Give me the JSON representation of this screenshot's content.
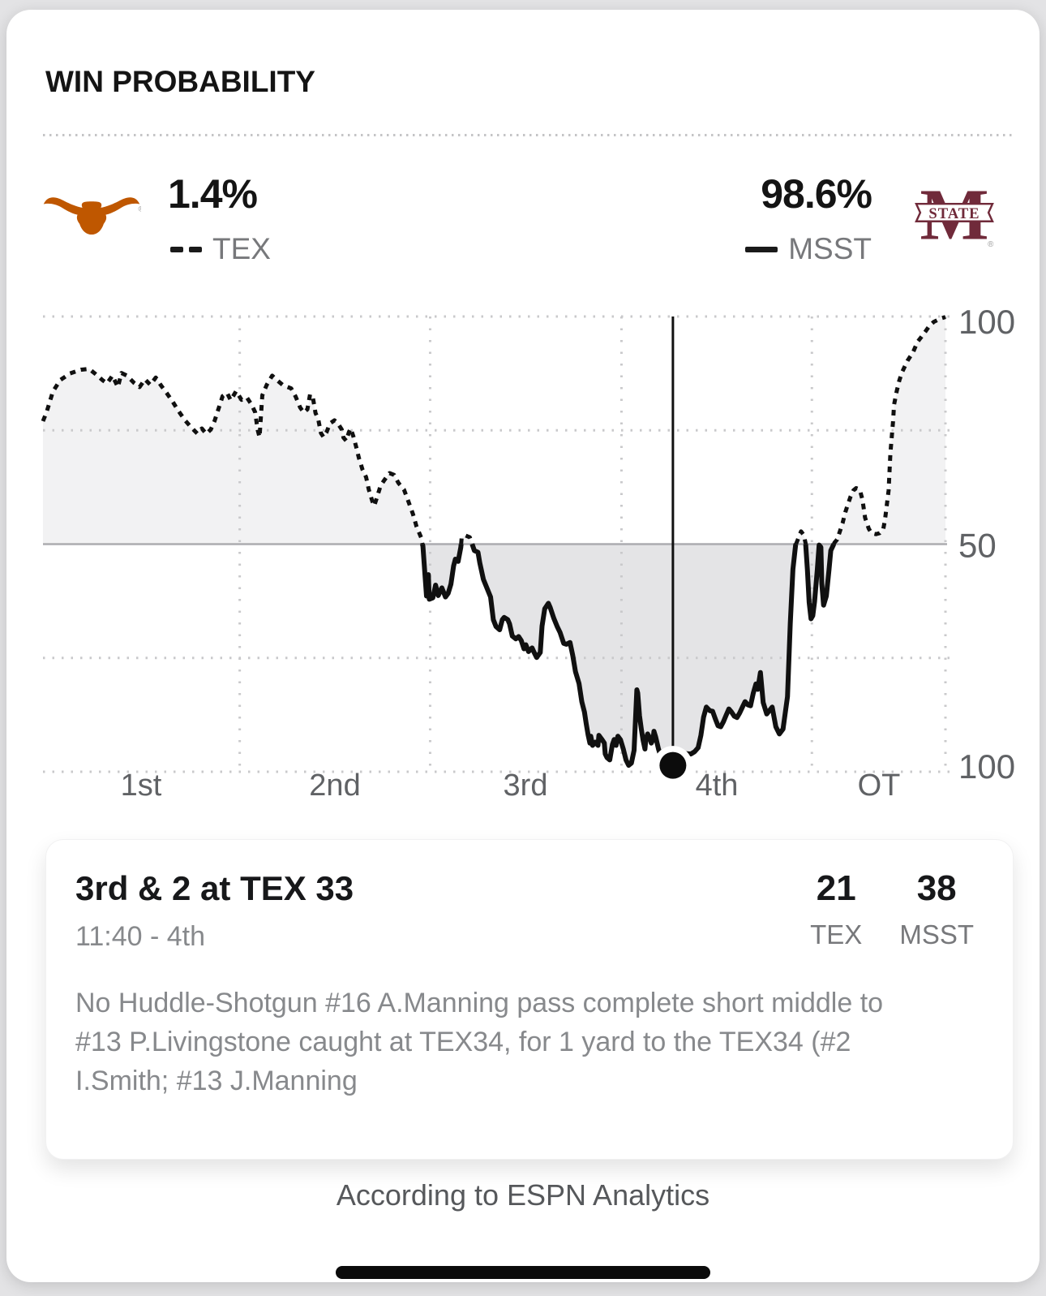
{
  "header": {
    "title": "WIN PROBABILITY"
  },
  "legend": {
    "away": {
      "pct": "1.4%",
      "abbr": "TEX",
      "line_style": "dashed",
      "logo_icon": "texas-longhorns-logo",
      "logo_color": "#BF5700"
    },
    "home": {
      "pct": "98.6%",
      "abbr": "MSST",
      "line_style": "solid",
      "logo_icon": "mississippi-state-logo",
      "logo_color": "#702A3A",
      "logo_banner_text": "STATE"
    }
  },
  "chart_data": {
    "type": "line",
    "x_labels": [
      "1st",
      "2nd",
      "3rd",
      "4th",
      "OT"
    ],
    "y_axis": {
      "top_label": "100",
      "mid_label": "50",
      "bottom_label": "100"
    },
    "quarter_boundaries_frac": [
      0.218,
      0.429,
      0.641,
      0.852,
      1.0
    ],
    "line_color": "#101010",
    "fill_above_50": "#f2f2f3",
    "fill_below_50": "#e4e4e6",
    "grid_color": "#c9c9cb",
    "mid_line_color": "#acacb0",
    "axis_label_color": "#606265",
    "current_play_marker": {
      "x_frac": 0.698,
      "tex_pct": 1.4
    },
    "series": [
      {
        "name": "TEX win probability (dashed above 50 = TEX favored, solid below 50 = MSST favored)",
        "x_unit": "fraction of game timeline",
        "points": [
          [
            0,
            77
          ],
          [
            0.004,
            79
          ],
          [
            0.011,
            83.5
          ],
          [
            0.019,
            86
          ],
          [
            0.03,
            87.5
          ],
          [
            0.042,
            88.3
          ],
          [
            0.051,
            88.5
          ],
          [
            0.058,
            87.4
          ],
          [
            0.066,
            86
          ],
          [
            0.071,
            85.3
          ],
          [
            0.077,
            87
          ],
          [
            0.083,
            84.5
          ],
          [
            0.087,
            87.6
          ],
          [
            0.093,
            87
          ],
          [
            0.101,
            85.4
          ],
          [
            0.107,
            84.5
          ],
          [
            0.113,
            86.2
          ],
          [
            0.119,
            85
          ],
          [
            0.125,
            86.6
          ],
          [
            0.131,
            84.8
          ],
          [
            0.137,
            83.2
          ],
          [
            0.144,
            81.2
          ],
          [
            0.15,
            79.3
          ],
          [
            0.157,
            77.3
          ],
          [
            0.164,
            75.7
          ],
          [
            0.171,
            74.3
          ],
          [
            0.176,
            75.4
          ],
          [
            0.181,
            74.2
          ],
          [
            0.186,
            75.2
          ],
          [
            0.19,
            77
          ],
          [
            0.195,
            80
          ],
          [
            0.199,
            82.5
          ],
          [
            0.204,
            83.2
          ],
          [
            0.208,
            81.6
          ],
          [
            0.214,
            83.6
          ],
          [
            0.22,
            81.7
          ],
          [
            0.226,
            82.2
          ],
          [
            0.231,
            80.7
          ],
          [
            0.235,
            79
          ],
          [
            0.238,
            75
          ],
          [
            0.24,
            73.5
          ],
          [
            0.243,
            82.7
          ],
          [
            0.248,
            85
          ],
          [
            0.254,
            87
          ],
          [
            0.26,
            85.9
          ],
          [
            0.266,
            84.9
          ],
          [
            0.275,
            84.2
          ],
          [
            0.28,
            82.4
          ],
          [
            0.285,
            80
          ],
          [
            0.289,
            78.9
          ],
          [
            0.293,
            79.6
          ],
          [
            0.296,
            82.9
          ],
          [
            0.299,
            82.3
          ],
          [
            0.302,
            78.8
          ],
          [
            0.305,
            77.4
          ],
          [
            0.308,
            74.4
          ],
          [
            0.311,
            73.5
          ],
          [
            0.314,
            74.5
          ],
          [
            0.318,
            76.5
          ],
          [
            0.323,
            77.2
          ],
          [
            0.327,
            76.4
          ],
          [
            0.331,
            75.2
          ],
          [
            0.333,
            73.4
          ],
          [
            0.336,
            72.7
          ],
          [
            0.339,
            74.6
          ],
          [
            0.341,
            75.4
          ],
          [
            0.344,
            73.6
          ],
          [
            0.347,
            71.4
          ],
          [
            0.35,
            69
          ],
          [
            0.354,
            66.4
          ],
          [
            0.358,
            64.7
          ],
          [
            0.361,
            62
          ],
          [
            0.365,
            59.4
          ],
          [
            0.367,
            58.4
          ],
          [
            0.37,
            60.2
          ],
          [
            0.374,
            62.8
          ],
          [
            0.378,
            64
          ],
          [
            0.384,
            65.6
          ],
          [
            0.389,
            65.2
          ],
          [
            0.394,
            63.4
          ],
          [
            0.4,
            62
          ],
          [
            0.405,
            59.3
          ],
          [
            0.41,
            56.6
          ],
          [
            0.414,
            53.8
          ],
          [
            0.419,
            51.5
          ],
          [
            0.421,
            49.5
          ],
          [
            0.423,
            44
          ],
          [
            0.425,
            38.6
          ],
          [
            0.427,
            43.3
          ],
          [
            0.428,
            37.9
          ],
          [
            0.432,
            38.2
          ],
          [
            0.435,
            41
          ],
          [
            0.438,
            38.7
          ],
          [
            0.442,
            40.4
          ],
          [
            0.446,
            38.4
          ],
          [
            0.449,
            39.2
          ],
          [
            0.452,
            41.2
          ],
          [
            0.455,
            45.2
          ],
          [
            0.457,
            46.7
          ],
          [
            0.46,
            46.2
          ],
          [
            0.463,
            49.3
          ],
          [
            0.464,
            51.5
          ],
          [
            0.468,
            51.9
          ],
          [
            0.473,
            51.5
          ],
          [
            0.475,
            50.3
          ],
          [
            0.478,
            48.6
          ],
          [
            0.482,
            48.2
          ],
          [
            0.484,
            45.9
          ],
          [
            0.488,
            42.3
          ],
          [
            0.491,
            40.8
          ],
          [
            0.496,
            38.4
          ],
          [
            0.499,
            33.4
          ],
          [
            0.502,
            31.9
          ],
          [
            0.506,
            31.2
          ],
          [
            0.509,
            33.4
          ],
          [
            0.511,
            33.9
          ],
          [
            0.515,
            33.4
          ],
          [
            0.517,
            32.5
          ],
          [
            0.52,
            29.8
          ],
          [
            0.524,
            29.2
          ],
          [
            0.527,
            29.7
          ],
          [
            0.53,
            28.8
          ],
          [
            0.533,
            27
          ],
          [
            0.535,
            27.9
          ],
          [
            0.538,
            26.4
          ],
          [
            0.542,
            27.2
          ],
          [
            0.544,
            26.3
          ],
          [
            0.547,
            25.1
          ],
          [
            0.551,
            26.2
          ],
          [
            0.553,
            32
          ],
          [
            0.556,
            35.8
          ],
          [
            0.56,
            37
          ],
          [
            0.562,
            36.1
          ],
          [
            0.566,
            33.7
          ],
          [
            0.57,
            31.8
          ],
          [
            0.573,
            30.6
          ],
          [
            0.577,
            28.2
          ],
          [
            0.58,
            28
          ],
          [
            0.584,
            28.4
          ],
          [
            0.587,
            25.6
          ],
          [
            0.59,
            22
          ],
          [
            0.594,
            19.4
          ],
          [
            0.597,
            15.4
          ],
          [
            0.6,
            13.1
          ],
          [
            0.602,
            10.5
          ],
          [
            0.604,
            8.1
          ],
          [
            0.606,
            6.3
          ],
          [
            0.607,
            7.8
          ],
          [
            0.609,
            5.8
          ],
          [
            0.612,
            6.5
          ],
          [
            0.615,
            5.8
          ],
          [
            0.616,
            8
          ],
          [
            0.619,
            7.2
          ],
          [
            0.622,
            6.3
          ],
          [
            0.623,
            3.9
          ],
          [
            0.625,
            3.1
          ],
          [
            0.628,
            2.6
          ],
          [
            0.631,
            6
          ],
          [
            0.633,
            7.1
          ],
          [
            0.635,
            5.8
          ],
          [
            0.637,
            7.8
          ],
          [
            0.64,
            7
          ],
          [
            0.643,
            5
          ],
          [
            0.646,
            2.6
          ],
          [
            0.649,
            1.4
          ],
          [
            0.652,
            1.9
          ],
          [
            0.655,
            4.7
          ],
          [
            0.658,
            18
          ],
          [
            0.659,
            17.3
          ],
          [
            0.661,
            12.3
          ],
          [
            0.663,
            9.4
          ],
          [
            0.665,
            6.9
          ],
          [
            0.667,
            5
          ],
          [
            0.668,
            7.1
          ],
          [
            0.67,
            8.3
          ],
          [
            0.672,
            7.6
          ],
          [
            0.674,
            6.3
          ],
          [
            0.676,
            7.1
          ],
          [
            0.677,
            8.9
          ],
          [
            0.679,
            7.6
          ],
          [
            0.682,
            5
          ],
          [
            0.685,
            3.2
          ],
          [
            0.686,
            2.1
          ],
          [
            0.689,
            1.3
          ],
          [
            0.693,
            1.5
          ],
          [
            0.695,
            2
          ],
          [
            0.698,
            1.4
          ],
          [
            0.703,
            2.6
          ],
          [
            0.707,
            3.6
          ],
          [
            0.712,
            4
          ],
          [
            0.718,
            3.9
          ],
          [
            0.722,
            4.4
          ],
          [
            0.726,
            5.3
          ],
          [
            0.729,
            8
          ],
          [
            0.732,
            12
          ],
          [
            0.735,
            14.2
          ],
          [
            0.739,
            13.4
          ],
          [
            0.742,
            13.3
          ],
          [
            0.745,
            11.6
          ],
          [
            0.748,
            10.1
          ],
          [
            0.751,
            9.9
          ],
          [
            0.754,
            11
          ],
          [
            0.757,
            12.4
          ],
          [
            0.76,
            13.8
          ],
          [
            0.763,
            13.1
          ],
          [
            0.766,
            12.2
          ],
          [
            0.769,
            11.9
          ],
          [
            0.772,
            12.9
          ],
          [
            0.775,
            14.2
          ],
          [
            0.778,
            15.4
          ],
          [
            0.781,
            14.7
          ],
          [
            0.784,
            14.5
          ],
          [
            0.787,
            17.2
          ],
          [
            0.79,
            19.3
          ],
          [
            0.792,
            18.1
          ],
          [
            0.795,
            21.8
          ],
          [
            0.798,
            15.2
          ],
          [
            0.802,
            12.7
          ],
          [
            0.808,
            14.2
          ],
          [
            0.812,
            9.9
          ],
          [
            0.816,
            8.3
          ],
          [
            0.82,
            9.4
          ],
          [
            0.825,
            16.5
          ],
          [
            0.828,
            32.5
          ],
          [
            0.831,
            44.5
          ],
          [
            0.834,
            49.8
          ],
          [
            0.837,
            51.3
          ],
          [
            0.84,
            52.8
          ],
          [
            0.843,
            52
          ],
          [
            0.845,
            50.2
          ],
          [
            0.847,
            44.5
          ],
          [
            0.849,
            37.2
          ],
          [
            0.851,
            33.6
          ],
          [
            0.853,
            34.3
          ],
          [
            0.855,
            37.4
          ],
          [
            0.858,
            44.5
          ],
          [
            0.86,
            49.8
          ],
          [
            0.862,
            49.3
          ],
          [
            0.863,
            41.3
          ],
          [
            0.865,
            36.6
          ],
          [
            0.868,
            38.6
          ],
          [
            0.871,
            44.4
          ],
          [
            0.873,
            48.6
          ],
          [
            0.877,
            50.3
          ],
          [
            0.88,
            51
          ],
          [
            0.883,
            52.8
          ],
          [
            0.886,
            54.6
          ],
          [
            0.889,
            57
          ],
          [
            0.892,
            58.8
          ],
          [
            0.895,
            60.5
          ],
          [
            0.898,
            61.8
          ],
          [
            0.901,
            62.3
          ],
          [
            0.905,
            62
          ],
          [
            0.908,
            59.8
          ],
          [
            0.911,
            55.8
          ],
          [
            0.915,
            53.4
          ],
          [
            0.918,
            52.4
          ],
          [
            0.923,
            52.2
          ],
          [
            0.927,
            52.4
          ],
          [
            0.931,
            53.2
          ],
          [
            0.933,
            55.3
          ],
          [
            0.937,
            61.8
          ],
          [
            0.939,
            70
          ],
          [
            0.942,
            77
          ],
          [
            0.943,
            80.6
          ],
          [
            0.946,
            83.6
          ],
          [
            0.949,
            86
          ],
          [
            0.952,
            87.8
          ],
          [
            0.958,
            90.3
          ],
          [
            0.964,
            92.1
          ],
          [
            0.969,
            94.4
          ],
          [
            0.976,
            96.2
          ],
          [
            0.982,
            97.9
          ],
          [
            0.987,
            98.8
          ],
          [
            0.994,
            99.5
          ],
          [
            1,
            99.9
          ]
        ]
      }
    ]
  },
  "play_card": {
    "title": "3rd & 2 at TEX 33",
    "time": "11:40 - 4th",
    "scores": [
      {
        "team": "TEX",
        "score": "21"
      },
      {
        "team": "MSST",
        "score": "38"
      }
    ],
    "description": "No Huddle-Shotgun #16 A.Manning pass complete short middle to #13 P.Livingstone caught at TEX34, for 1 yard to the TEX34 (#2 I.Smith; #13 J.Manning"
  },
  "footer": {
    "attribution": "According to ESPN Analytics"
  }
}
